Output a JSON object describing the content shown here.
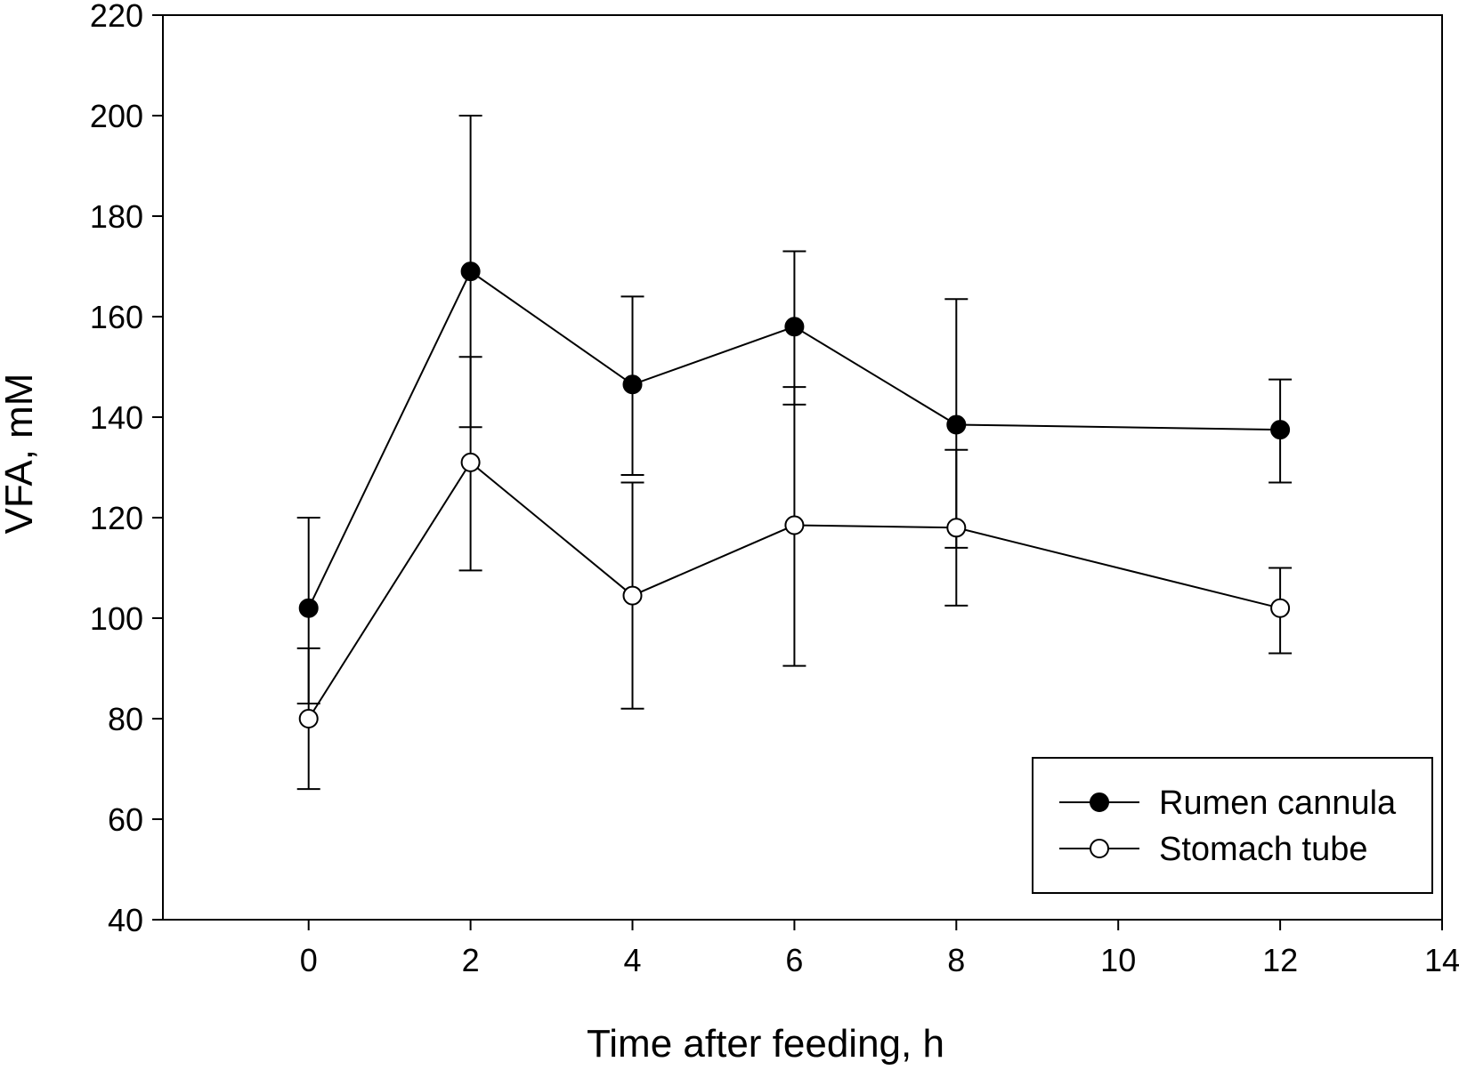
{
  "chart_data": {
    "type": "line",
    "title": "",
    "xlabel": "Time after feeding, h",
    "ylabel": "VFA, mM",
    "xlim": [
      -1.8,
      14
    ],
    "ylim": [
      40,
      220
    ],
    "xticks": [
      0,
      2,
      4,
      6,
      8,
      10,
      12,
      14
    ],
    "yticks": [
      40,
      60,
      80,
      100,
      120,
      140,
      160,
      180,
      200,
      220
    ],
    "grid": false,
    "legend_position": "bottom-right",
    "series": [
      {
        "name": "Rumen cannula",
        "marker": "filled-circle",
        "x": [
          0,
          2,
          4,
          6,
          8,
          12
        ],
        "y": [
          102,
          169,
          146.5,
          158,
          138.5,
          137.5
        ],
        "err_low": [
          83,
          138,
          128.5,
          142.5,
          114,
          127
        ],
        "err_high": [
          120,
          200,
          164,
          173,
          163.5,
          147.5
        ]
      },
      {
        "name": "Stomach tube",
        "marker": "open-circle",
        "x": [
          0,
          2,
          4,
          6,
          8,
          12
        ],
        "y": [
          80,
          131,
          104.5,
          118.5,
          118,
          102
        ],
        "err_low": [
          66,
          109.5,
          82,
          90.5,
          102.5,
          93
        ],
        "err_high": [
          94,
          152,
          127,
          146,
          133.5,
          110
        ]
      }
    ]
  }
}
